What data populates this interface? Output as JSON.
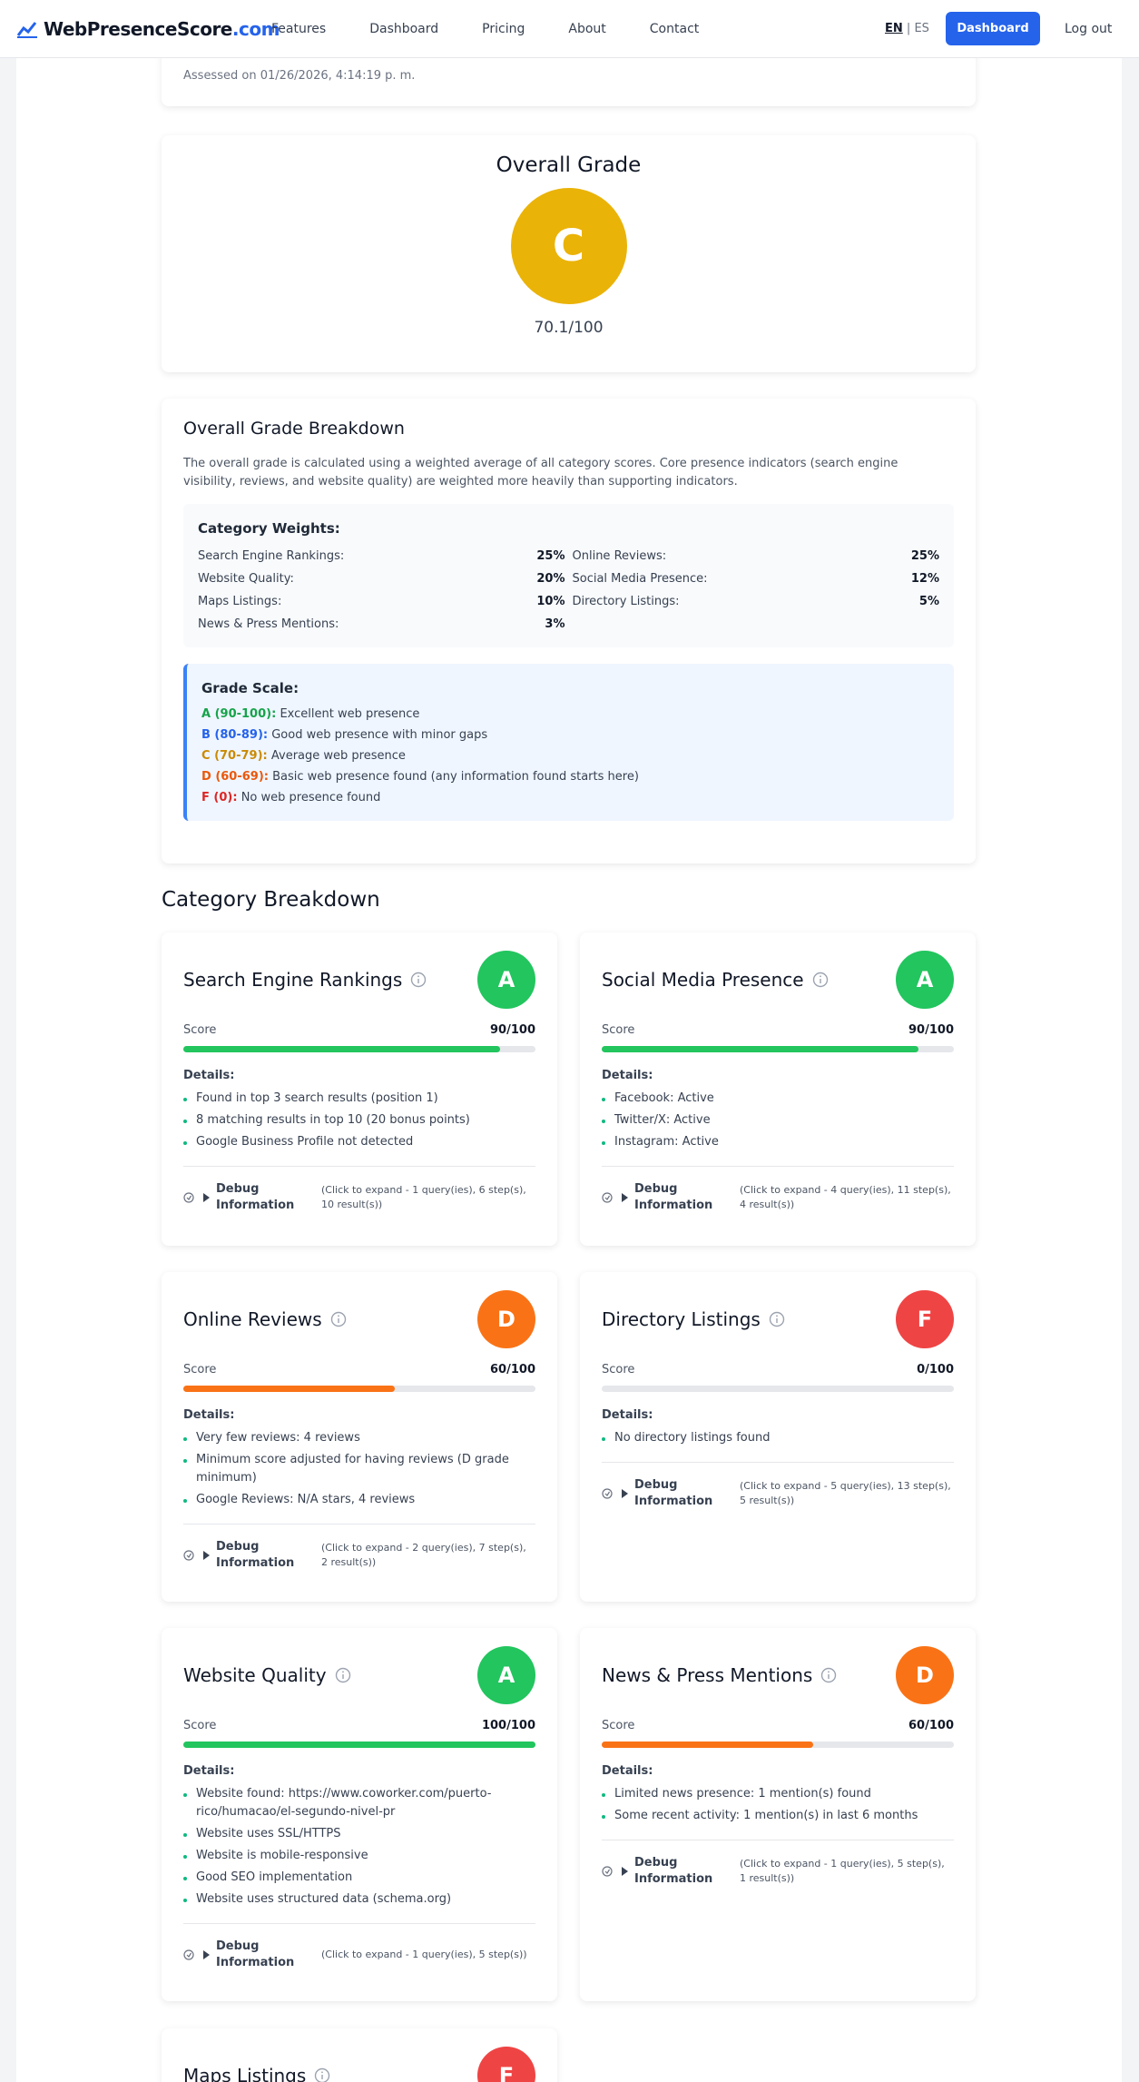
{
  "nav": {
    "logo": "WebPresenceScore",
    "logo_tld": ".com",
    "links": [
      "Features",
      "Dashboard",
      "Pricing",
      "About",
      "Contact"
    ],
    "lang_en": "EN",
    "lang_sep": "|",
    "lang_es": "ES",
    "button": "Dashboard",
    "logout": "Log out"
  },
  "assessed": "Assessed on 01/26/2026, 4:14:19 p. m.",
  "overall": {
    "title": "Overall Grade",
    "grade": "C",
    "color": "#eab308",
    "score": "70.1/100"
  },
  "breakdown": {
    "title": "Overall Grade Breakdown",
    "text": "The overall grade is calculated using a weighted average of all category scores. Core presence indicators (search engine visibility, reviews, and website quality) are weighted more heavily than supporting indicators.",
    "weights_title": "Category Weights:",
    "weights": [
      [
        "Search Engine Rankings:",
        "25%"
      ],
      [
        "Online Reviews:",
        "25%"
      ],
      [
        "Website Quality:",
        "20%"
      ],
      [
        "Social Media Presence:",
        "12%"
      ],
      [
        "Maps Listings:",
        "10%"
      ],
      [
        "Directory Listings:",
        "5%"
      ],
      [
        "News & Press Mentions:",
        "3%"
      ]
    ],
    "scale_title": "Grade Scale:",
    "scale": [
      {
        "label": "A (90-100):",
        "text": "Excellent web presence",
        "color": "#16a34a"
      },
      {
        "label": "B (80-89):",
        "text": "Good web presence with minor gaps",
        "color": "#2563eb"
      },
      {
        "label": "C (70-79):",
        "text": "Average web presence",
        "color": "#ca8a04"
      },
      {
        "label": "D (60-69):",
        "text": "Basic web presence found (any information found starts here)",
        "color": "#ea580c"
      },
      {
        "label": "F (0):",
        "text": "No web presence found",
        "color": "#dc2626"
      }
    ]
  },
  "section_title": "Category Breakdown",
  "score_caption": "Score",
  "details_caption": "Details:",
  "debug_caption": "Debug Information",
  "categories": [
    {
      "title": "Search Engine Rankings",
      "grade": "A",
      "color": "#22c55e",
      "score": 90,
      "score_max": 100,
      "score_label": "90/100",
      "details": [
        "Found in top 3 search results (position 1)",
        "8 matching results in top 10 (20 bonus points)",
        "Google Business Profile not detected"
      ],
      "debug": "(Click to expand - 1 query(ies), 6 step(s), 10 result(s))"
    },
    {
      "title": "Social Media Presence",
      "grade": "A",
      "color": "#22c55e",
      "score": 90,
      "score_max": 100,
      "score_label": "90/100",
      "details": [
        "Facebook: Active",
        "Twitter/X: Active",
        "Instagram: Active"
      ],
      "debug": "(Click to expand - 4 query(ies), 11 step(s), 4 result(s))"
    },
    {
      "title": "Online Reviews",
      "grade": "D",
      "color": "#f97316",
      "score": 60,
      "score_max": 100,
      "score_label": "60/100",
      "details": [
        "Very few reviews: 4 reviews",
        "Minimum score adjusted for having reviews (D grade minimum)",
        "Google Reviews: N/A stars, 4 reviews"
      ],
      "debug": "(Click to expand - 2 query(ies), 7 step(s), 2 result(s))"
    },
    {
      "title": "Directory Listings",
      "grade": "F",
      "color": "#ef4444",
      "score": 0,
      "score_max": 100,
      "score_label": "0/100",
      "details": [
        "No directory listings found"
      ],
      "debug": "(Click to expand - 5 query(ies), 13 step(s), 5 result(s))"
    },
    {
      "title": "Website Quality",
      "grade": "A",
      "color": "#22c55e",
      "score": 100,
      "score_max": 100,
      "score_label": "100/100",
      "details": [
        "Website found: https://www.coworker.com/puerto-rico/humacao/el-segundo-nivel-pr",
        "Website uses SSL/HTTPS",
        "Website is mobile-responsive",
        "Good SEO implementation",
        "Website uses structured data (schema.org)"
      ],
      "debug": "(Click to expand - 1 query(ies), 5 step(s))"
    },
    {
      "title": "News & Press Mentions",
      "grade": "D",
      "color": "#f97316",
      "score": 60,
      "score_max": 100,
      "score_label": "60/100",
      "details": [
        "Limited news presence: 1 mention(s) found",
        "Some recent activity: 1 mention(s) in last 6 months"
      ],
      "debug": "(Click to expand - 1 query(ies), 5 step(s), 1 result(s))"
    },
    {
      "title": "Maps Listings",
      "grade": "F",
      "color": "#ef4444"
    }
  ]
}
